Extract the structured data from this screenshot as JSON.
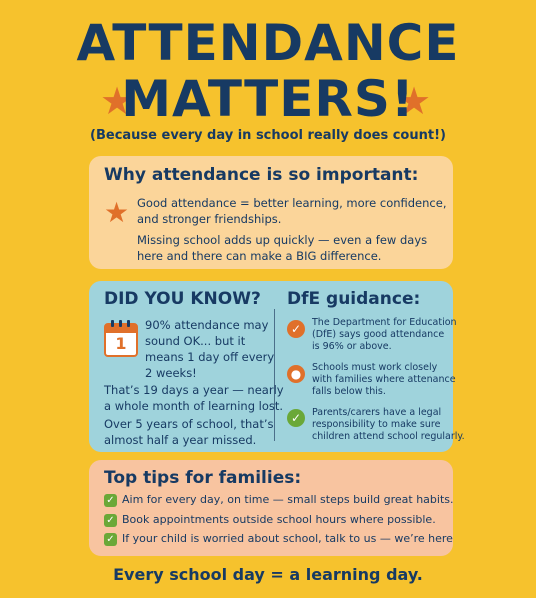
{
  "colors": {
    "background": "#f6c22d",
    "navy": "#173a63",
    "orange": "#e0702a",
    "green": "#6aa838",
    "why_card": "#fbd59a",
    "did_card": "#9fd3dc",
    "tips_card": "#f8c4a0"
  },
  "header": {
    "title_line1": "ATTENDANCE",
    "title_line2": "MATTERS!",
    "subtitle": "(Because every day in school really does count!)"
  },
  "why": {
    "title": "Why attendance is so important:",
    "icon": "star-icon",
    "line1": "Good attendance = better learning, more confidence,",
    "line2": "and stronger friendships.",
    "line3": "Missing school adds up quickly — even a few days",
    "line4": "here and there can make a BIG difference."
  },
  "did_you_know": {
    "title": "DID YOU KNOW?",
    "calendar_number": "1",
    "fact1_lines": [
      "90% attendance may",
      "sound OK... but it",
      "means 1 day off every",
      "2 weeks!"
    ],
    "fact2_lines": [
      "That’s 19 days a year — nearly",
      "a whole month of learning lost."
    ],
    "fact3_lines": [
      "Over 5 years of school, that’s",
      "almost half a year missed."
    ]
  },
  "dfe": {
    "title": "DfE guidance:",
    "items": [
      {
        "icon": "check-icon",
        "lines": [
          "The Department for Education",
          "(DfE) says good attendance",
          "is 96% or above."
        ]
      },
      {
        "icon": "dot-icon",
        "lines": [
          "Schools must work closely",
          "with families where attenance",
          "falls below this."
        ]
      },
      {
        "icon": "check-icon",
        "lines": [
          "Parents/carers have a legal",
          "responsibility to make sure",
          "children attend school regularly."
        ]
      }
    ]
  },
  "tips": {
    "title": "Top tips for families:",
    "items": [
      "Aim for every day, on time — small steps build great habits.",
      "Book appointments outside school hours where possible.",
      "If your child is worried about school, talk to us — we’re here"
    ]
  },
  "footer": "Every school day = a learning day."
}
